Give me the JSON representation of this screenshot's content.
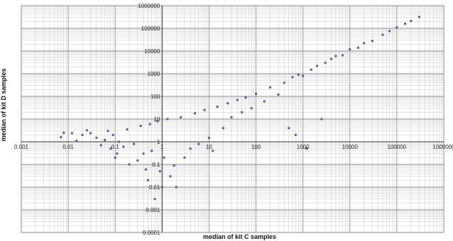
{
  "chart_data": {
    "type": "scatter",
    "title": "",
    "xlabel": "median of kit C samples",
    "ylabel": "median of kit D samples",
    "x_scale": "log",
    "y_scale": "log",
    "xlim": [
      0.001,
      1000000
    ],
    "ylim": [
      0.0001,
      1000000
    ],
    "x_tick_labels": [
      "0.001",
      "0.01",
      "0.1",
      "1",
      "10",
      "100",
      "1000",
      "10000",
      "100000",
      "1000000"
    ],
    "y_tick_labels": [
      "0.0001",
      "0.001",
      "0.01",
      "0.1",
      "1",
      "10",
      "100",
      "1000",
      "10000",
      "100000",
      "1000000"
    ],
    "grid": true,
    "legend": "none",
    "marker_color": "#5a5a9e",
    "series": [
      {
        "points": [
          [
            0.007,
            1.6
          ],
          [
            0.008,
            2.5
          ],
          [
            0.012,
            2.4
          ],
          [
            0.015,
            1.1
          ],
          [
            0.02,
            2.0
          ],
          [
            0.025,
            3.2
          ],
          [
            0.03,
            2.4
          ],
          [
            0.04,
            1.5
          ],
          [
            0.05,
            0.7
          ],
          [
            0.06,
            1.2
          ],
          [
            0.07,
            3.0
          ],
          [
            0.08,
            0.5
          ],
          [
            0.09,
            2.0
          ],
          [
            0.1,
            0.2
          ],
          [
            0.11,
            0.3
          ],
          [
            0.12,
            1.0
          ],
          [
            0.15,
            0.6
          ],
          [
            0.18,
            3.5
          ],
          [
            0.2,
            0.1
          ],
          [
            0.25,
            0.8
          ],
          [
            0.3,
            0.15
          ],
          [
            0.35,
            5.0
          ],
          [
            0.4,
            0.3
          ],
          [
            0.45,
            0.06
          ],
          [
            0.5,
            0.02
          ],
          [
            0.55,
            6.0
          ],
          [
            0.6,
            0.4
          ],
          [
            0.7,
            0.003
          ],
          [
            0.8,
            8.0
          ],
          [
            0.9,
            0.05
          ],
          [
            1.0,
            0.01
          ],
          [
            1.1,
            0.2
          ],
          [
            1.3,
            10
          ],
          [
            1.5,
            0.03
          ],
          [
            1.8,
            0.09
          ],
          [
            2.0,
            0.01
          ],
          [
            2.5,
            12
          ],
          [
            3.0,
            0.2
          ],
          [
            4.0,
            0.5
          ],
          [
            5.0,
            18
          ],
          [
            6.0,
            0.8
          ],
          [
            8.0,
            25
          ],
          [
            10,
            1.5
          ],
          [
            12,
            0.4
          ],
          [
            15,
            35
          ],
          [
            20,
            4
          ],
          [
            25,
            50
          ],
          [
            30,
            12
          ],
          [
            40,
            70
          ],
          [
            50,
            20
          ],
          [
            60,
            90
          ],
          [
            80,
            30
          ],
          [
            100,
            130
          ],
          [
            150,
            60
          ],
          [
            200,
            250
          ],
          [
            300,
            120
          ],
          [
            400,
            400
          ],
          [
            500,
            4
          ],
          [
            600,
            700
          ],
          [
            700,
            2
          ],
          [
            800,
            900
          ],
          [
            1000,
            800
          ],
          [
            1200,
            0.5
          ],
          [
            1500,
            1500
          ],
          [
            2000,
            2200
          ],
          [
            2500,
            10
          ],
          [
            3000,
            3000
          ],
          [
            4000,
            4500
          ],
          [
            5000,
            6000
          ],
          [
            7000,
            6500
          ],
          [
            10000,
            12000
          ],
          [
            15000,
            14000
          ],
          [
            20000,
            22000
          ],
          [
            30000,
            28000
          ],
          [
            50000,
            52000
          ],
          [
            70000,
            75000
          ],
          [
            100000,
            110000
          ],
          [
            150000,
            160000
          ],
          [
            200000,
            210000
          ],
          [
            300000,
            320000
          ]
        ]
      }
    ]
  }
}
